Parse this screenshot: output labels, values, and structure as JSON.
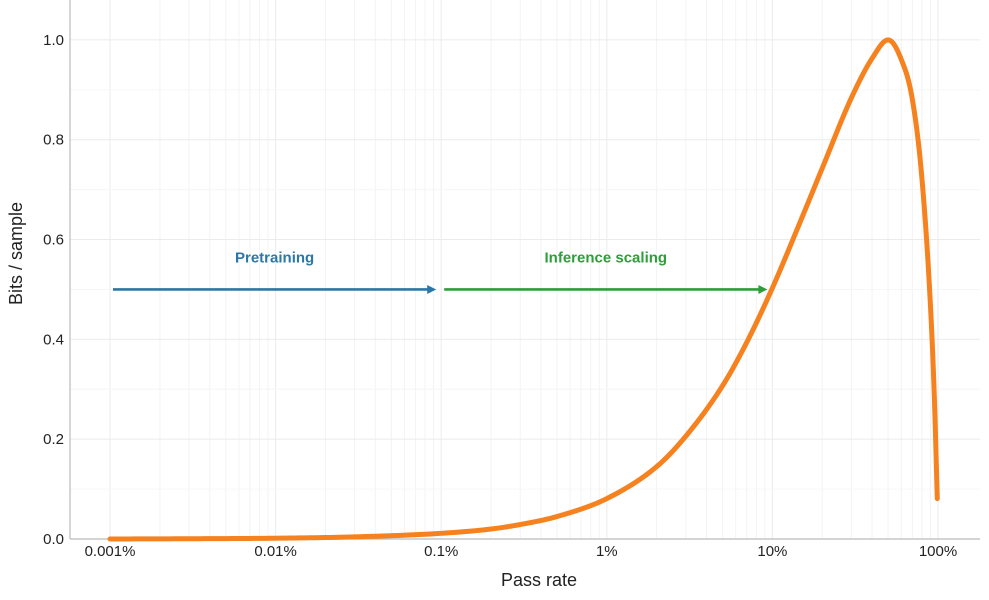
{
  "chart_data": {
    "type": "line",
    "title": "",
    "xlabel": "Pass rate",
    "ylabel": "Bits / sample",
    "x_scale": "log",
    "xlim": [
      0.001,
      100
    ],
    "ylim": [
      0,
      1.08
    ],
    "grid": true,
    "x_ticks": [
      {
        "value": 0.001,
        "label": "0.001%"
      },
      {
        "value": 0.01,
        "label": "0.01%"
      },
      {
        "value": 0.1,
        "label": "0.1%"
      },
      {
        "value": 1,
        "label": "1%"
      },
      {
        "value": 10,
        "label": "10%"
      },
      {
        "value": 100,
        "label": "100%"
      }
    ],
    "y_ticks": [
      {
        "value": 0.0,
        "label": "0.0"
      },
      {
        "value": 0.2,
        "label": "0.2"
      },
      {
        "value": 0.4,
        "label": "0.4"
      },
      {
        "value": 0.6,
        "label": "0.6"
      },
      {
        "value": 0.8,
        "label": "0.8"
      },
      {
        "value": 1.0,
        "label": "1.0"
      }
    ],
    "series": [
      {
        "color": "#f5821f",
        "x": [
          0.001,
          0.003,
          0.01,
          0.03,
          0.1,
          0.2,
          0.3,
          0.5,
          1,
          2,
          3,
          5,
          7,
          10,
          15,
          20,
          30,
          40,
          50,
          60,
          70,
          80,
          90,
          95,
          99
        ],
        "y": [
          0.0,
          0.0005,
          0.0016,
          0.0043,
          0.0114,
          0.02,
          0.029,
          0.045,
          0.081,
          0.145,
          0.206,
          0.307,
          0.394,
          0.503,
          0.642,
          0.743,
          0.884,
          0.963,
          1.0,
          0.961,
          0.881,
          0.722,
          0.469,
          0.286,
          0.081
        ]
      }
    ],
    "annotations": [
      {
        "text": "Pretraining",
        "color": "#2b78a8",
        "x_from": 0.001,
        "x_to": 0.1,
        "y": 0.5
      },
      {
        "text": "Inference scaling",
        "color": "#2f9e3a",
        "x_from": 0.1,
        "x_to": 10,
        "y": 0.5
      }
    ]
  }
}
